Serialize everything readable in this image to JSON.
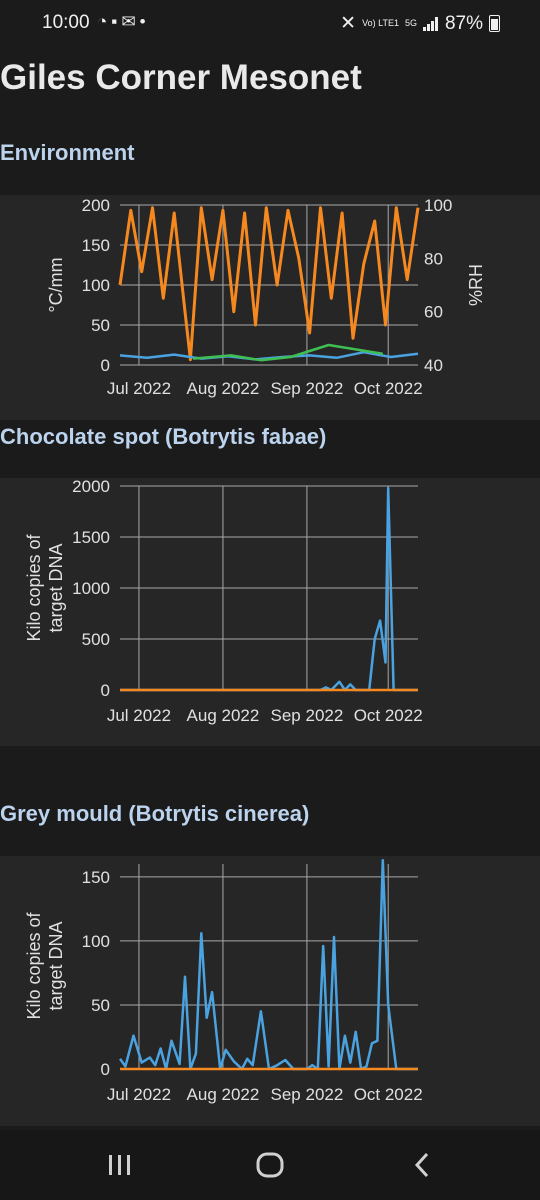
{
  "status_bar": {
    "time": "10:00",
    "left_icons": [
      "whatsapp-icon",
      "chat-icon",
      "mail-icon",
      "dot-icon"
    ],
    "network_top": "Vo) LTE1",
    "network_badge": "5G",
    "battery_percent": "87%",
    "battery_level": 0.87
  },
  "page": {
    "title": "Giles Corner Mesonet"
  },
  "sections": [
    {
      "title": "Environment"
    },
    {
      "title": "Chocolate spot (Botrytis fabae)"
    },
    {
      "title": "Grey mould (Botrytis cinerea)"
    }
  ],
  "chart_data": [
    {
      "type": "line",
      "title": "Environment",
      "ylabel": "°C/mm",
      "y2label": "%RH",
      "ylim": [
        0,
        200
      ],
      "y2lim": [
        40,
        100
      ],
      "yticks": [
        0,
        50,
        100,
        150,
        200
      ],
      "y2ticks": [
        40,
        60,
        80,
        100
      ],
      "xlim": [
        "2022-06-24",
        "2022-10-12"
      ],
      "xticks": [
        "Jul 2022",
        "Aug 2022",
        "Sep 2022",
        "Oct 2022"
      ],
      "series": [
        {
          "axis": "y2",
          "color": "#f5891f",
          "name": "",
          "x": [
            "2022-06-24",
            "2022-06-28",
            "2022-07-02",
            "2022-07-06",
            "2022-07-10",
            "2022-07-14",
            "2022-07-18",
            "2022-07-20",
            "2022-07-24",
            "2022-07-28",
            "2022-08-01",
            "2022-08-05",
            "2022-08-09",
            "2022-08-13",
            "2022-08-17",
            "2022-08-21",
            "2022-08-25",
            "2022-08-29",
            "2022-09-02",
            "2022-09-06",
            "2022-09-10",
            "2022-09-14",
            "2022-09-18",
            "2022-09-22",
            "2022-09-26",
            "2022-09-30",
            "2022-10-04",
            "2022-10-08",
            "2022-10-12"
          ],
          "y": [
            70,
            98,
            75,
            99,
            65,
            97,
            60,
            42,
            99,
            72,
            98,
            60,
            97,
            55,
            99,
            70,
            98,
            80,
            52,
            99,
            65,
            97,
            50,
            78,
            94,
            55,
            99,
            72,
            99
          ]
        },
        {
          "axis": "y",
          "color": "#4aa3e0",
          "name": "",
          "x": [
            "2022-06-24",
            "2022-07-04",
            "2022-07-14",
            "2022-07-24",
            "2022-08-03",
            "2022-08-13",
            "2022-08-23",
            "2022-09-02",
            "2022-09-12",
            "2022-09-22",
            "2022-10-02",
            "2022-10-12"
          ],
          "y": [
            12,
            9,
            13,
            8,
            11,
            7,
            10,
            12,
            9,
            16,
            10,
            14
          ]
        },
        {
          "axis": "y",
          "color": "#3fbf52",
          "name": "",
          "x": [
            "2022-07-21",
            "2022-08-04",
            "2022-08-15",
            "2022-08-26",
            "2022-09-09",
            "2022-09-29"
          ],
          "y": [
            8,
            12,
            6,
            10,
            25,
            14
          ]
        }
      ]
    },
    {
      "type": "line",
      "title": "Chocolate spot (Botrytis fabae)",
      "ylabel": "Kilo copies of target DNA",
      "ylim": [
        0,
        2000
      ],
      "yticks": [
        0,
        500,
        1000,
        1500,
        2000
      ],
      "xlim": [
        "2022-06-24",
        "2022-10-12"
      ],
      "xticks": [
        "Jul 2022",
        "Aug 2022",
        "Sep 2022",
        "Oct 2022"
      ],
      "series": [
        {
          "color": "#4aa3e0",
          "name": "",
          "x": [
            "2022-06-24",
            "2022-08-31",
            "2022-09-06",
            "2022-09-08",
            "2022-09-10",
            "2022-09-13",
            "2022-09-15",
            "2022-09-17",
            "2022-09-19",
            "2022-09-21",
            "2022-09-24",
            "2022-09-26",
            "2022-09-28",
            "2022-09-30",
            "2022-10-01",
            "2022-10-03",
            "2022-10-12"
          ],
          "y": [
            0,
            0,
            0,
            25,
            0,
            80,
            0,
            55,
            0,
            0,
            0,
            500,
            680,
            270,
            1980,
            0,
            0
          ]
        },
        {
          "color": "#f5891f",
          "name": "",
          "x": [
            "2022-06-24",
            "2022-10-12"
          ],
          "y": [
            0,
            0
          ]
        }
      ]
    },
    {
      "type": "line",
      "title": "Grey mould (Botrytis cinerea)",
      "ylabel": "Kilo copies of target DNA",
      "ylim": [
        0,
        160
      ],
      "yticks": [
        0,
        50,
        100,
        150
      ],
      "xlim": [
        "2022-06-24",
        "2022-10-12"
      ],
      "xticks": [
        "Jul 2022",
        "Aug 2022",
        "Sep 2022",
        "Oct 2022"
      ],
      "series": [
        {
          "color": "#4aa3e0",
          "name": "",
          "x": [
            "2022-06-24",
            "2022-06-26",
            "2022-06-29",
            "2022-07-02",
            "2022-07-05",
            "2022-07-07",
            "2022-07-09",
            "2022-07-11",
            "2022-07-13",
            "2022-07-16",
            "2022-07-18",
            "2022-07-20",
            "2022-07-22",
            "2022-07-24",
            "2022-07-26",
            "2022-07-28",
            "2022-07-31",
            "2022-08-02",
            "2022-08-05",
            "2022-08-08",
            "2022-08-10",
            "2022-08-12",
            "2022-08-15",
            "2022-08-18",
            "2022-08-21",
            "2022-08-24",
            "2022-08-27",
            "2022-09-01",
            "2022-09-03",
            "2022-09-05",
            "2022-09-07",
            "2022-09-09",
            "2022-09-11",
            "2022-09-13",
            "2022-09-15",
            "2022-09-17",
            "2022-09-19",
            "2022-09-21",
            "2022-09-23",
            "2022-09-25",
            "2022-09-27",
            "2022-09-29",
            "2022-10-01",
            "2022-10-04",
            "2022-10-12"
          ],
          "y": [
            8,
            2,
            26,
            5,
            9,
            3,
            16,
            0,
            22,
            4,
            72,
            0,
            12,
            106,
            40,
            60,
            0,
            15,
            6,
            0,
            8,
            3,
            45,
            0,
            3,
            7,
            0,
            0,
            3,
            0,
            96,
            2,
            103,
            0,
            26,
            5,
            29,
            0,
            2,
            20,
            22,
            163,
            50,
            0,
            0
          ]
        },
        {
          "color": "#f5891f",
          "name": "",
          "x": [
            "2022-06-24",
            "2022-10-12"
          ],
          "y": [
            0,
            0
          ]
        }
      ]
    }
  ],
  "nav_bar": {
    "buttons": [
      "recent-apps-icon",
      "home-icon",
      "back-icon"
    ]
  }
}
